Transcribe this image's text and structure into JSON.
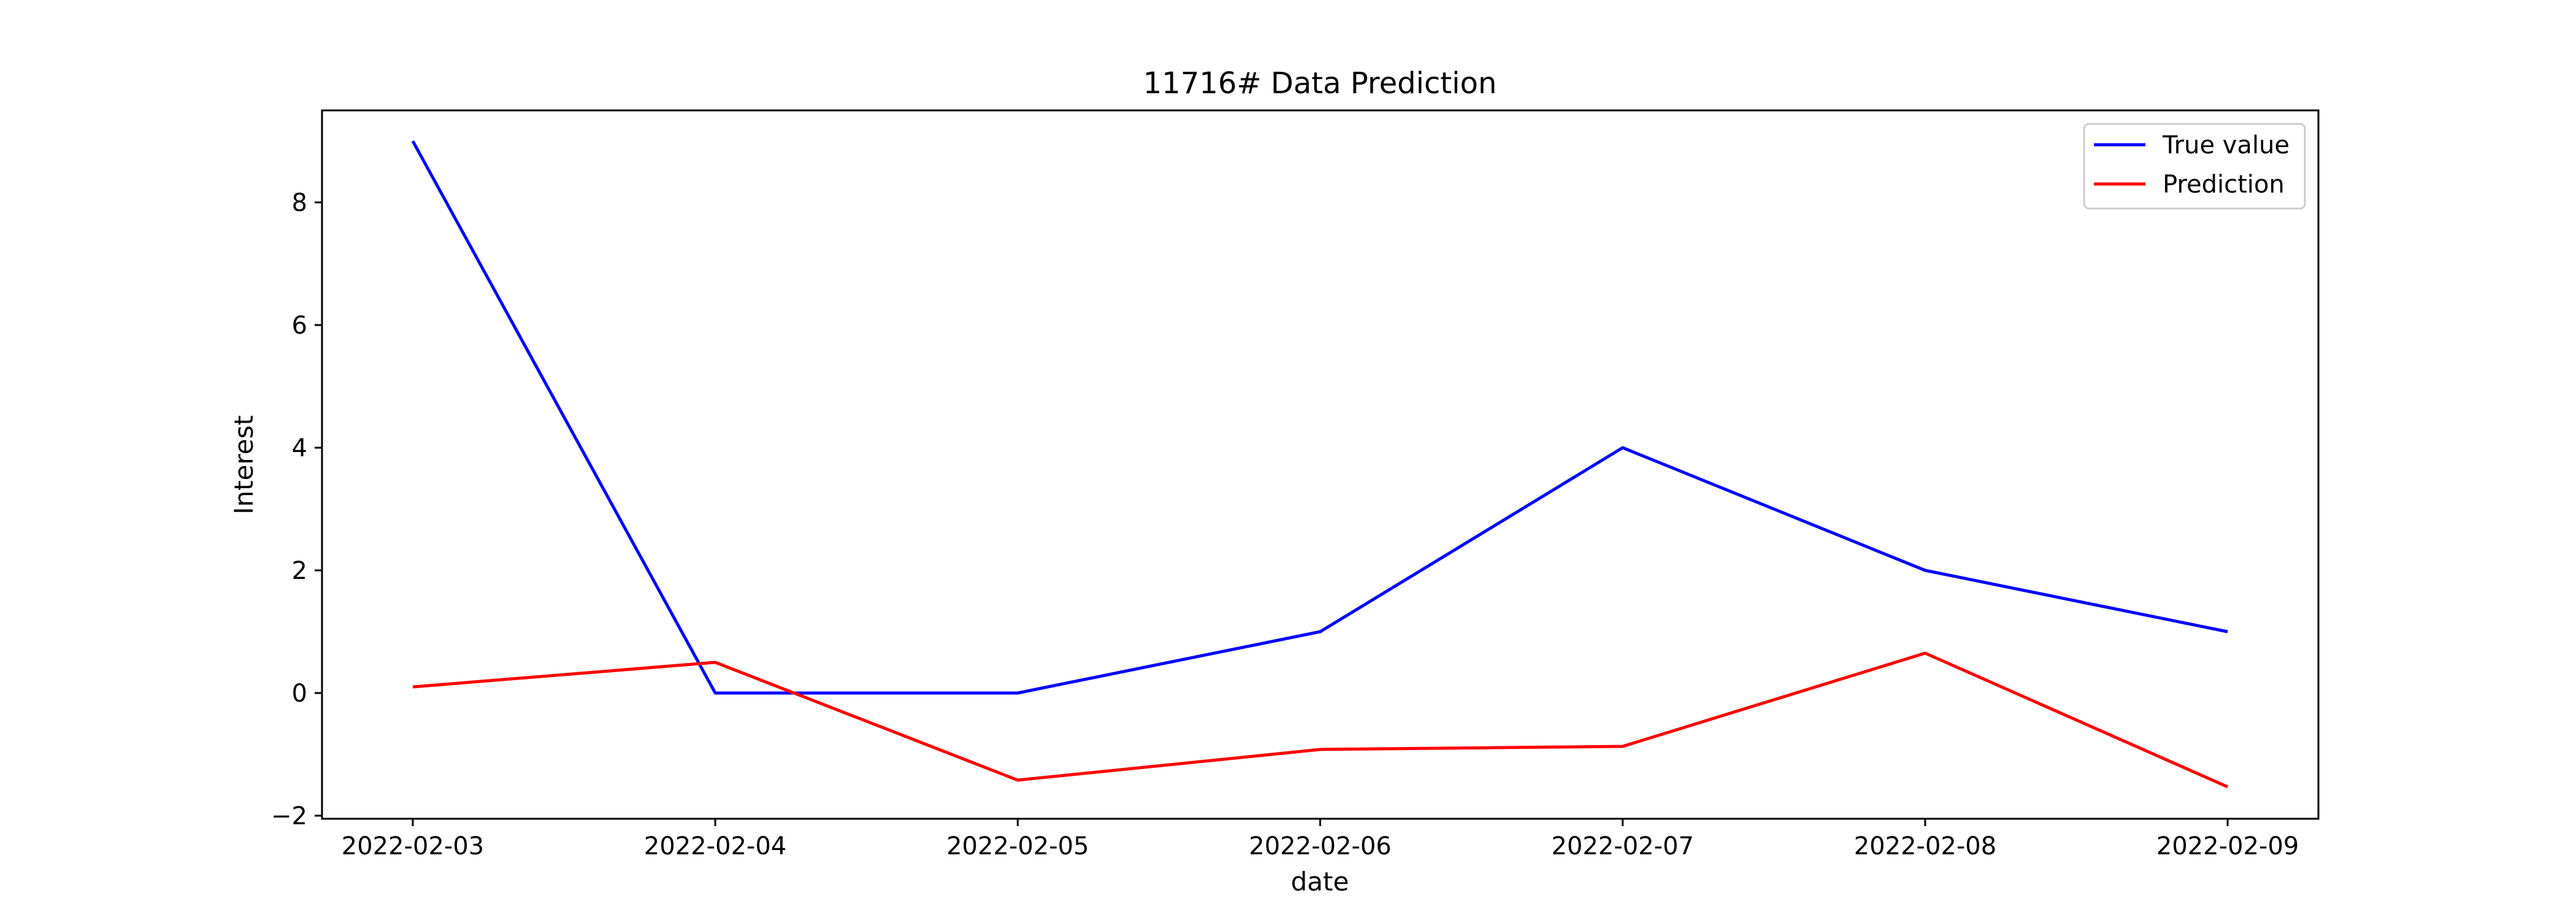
{
  "chart_data": {
    "type": "line",
    "title": "11716# Data Prediction",
    "xlabel": "date",
    "ylabel": "Interest",
    "x": [
      "2022-02-03",
      "2022-02-04",
      "2022-02-05",
      "2022-02-06",
      "2022-02-07",
      "2022-02-08",
      "2022-02-09"
    ],
    "yticks": [
      -2,
      0,
      2,
      4,
      6,
      8
    ],
    "ytick_labels": [
      "−2",
      "0",
      "2",
      "4",
      "6",
      "8"
    ],
    "ylim": [
      -2.05,
      9.5
    ],
    "grid": false,
    "legend_position": "top-right",
    "series": [
      {
        "name": "True value",
        "color": "#0000ff",
        "values": [
          9,
          0,
          0,
          1,
          4,
          2,
          1
        ]
      },
      {
        "name": "Prediction",
        "color": "#ff0000",
        "values": [
          0.1,
          0.5,
          -1.42,
          -0.92,
          -0.87,
          0.65,
          -1.53
        ]
      }
    ]
  }
}
